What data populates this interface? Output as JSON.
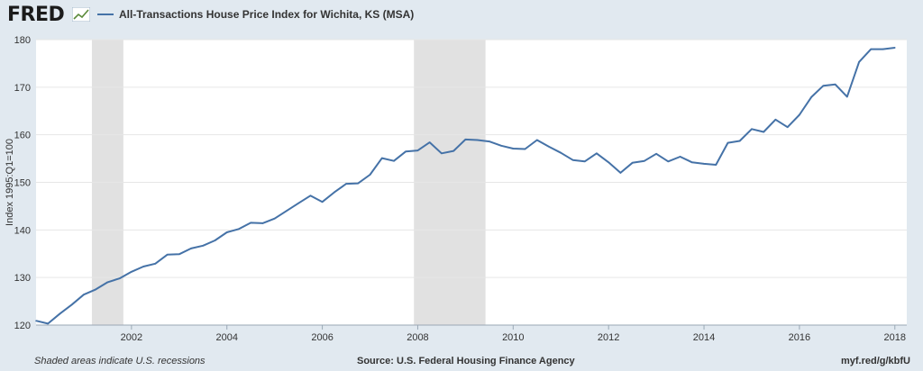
{
  "header": {
    "logo": "FRED",
    "legend_label": "All-Transactions House Price Index for Wichita, KS (MSA)"
  },
  "footer": {
    "note": "Shaded areas indicate U.S. recessions",
    "source": "Source: U.S. Federal Housing Finance Agency",
    "url": "myf.red/g/kbfU"
  },
  "colors": {
    "series": "#4572a7",
    "recession": "#e1e1e1",
    "plot_bg": "#ffffff",
    "page_bg": "#e1e9f0"
  },
  "chart_data": {
    "type": "line",
    "title": "All-Transactions House Price Index for Wichita, KS (MSA)",
    "ylabel": "Index 1995:Q1=100",
    "xlabel": "",
    "xlim": [
      2000.0,
      2018.25
    ],
    "ylim": [
      120,
      180
    ],
    "x_ticks": [
      2002,
      2004,
      2006,
      2008,
      2010,
      2012,
      2014,
      2016,
      2018
    ],
    "y_ticks": [
      120,
      130,
      140,
      150,
      160,
      170,
      180
    ],
    "grid": true,
    "recessions": [
      [
        2001.17,
        2001.83
      ],
      [
        2007.92,
        2009.42
      ]
    ],
    "series": [
      {
        "name": "All-Transactions House Price Index for Wichita, KS (MSA)",
        "x": [
          2000.0,
          2000.25,
          2000.5,
          2000.75,
          2001.0,
          2001.25,
          2001.5,
          2001.75,
          2002.0,
          2002.25,
          2002.5,
          2002.75,
          2003.0,
          2003.25,
          2003.5,
          2003.75,
          2004.0,
          2004.25,
          2004.5,
          2004.75,
          2005.0,
          2005.25,
          2005.5,
          2005.75,
          2006.0,
          2006.25,
          2006.5,
          2006.75,
          2007.0,
          2007.25,
          2007.5,
          2007.75,
          2008.0,
          2008.25,
          2008.5,
          2008.75,
          2009.0,
          2009.25,
          2009.5,
          2009.75,
          2010.0,
          2010.25,
          2010.5,
          2010.75,
          2011.0,
          2011.25,
          2011.5,
          2011.75,
          2012.0,
          2012.25,
          2012.5,
          2012.75,
          2013.0,
          2013.25,
          2013.5,
          2013.75,
          2014.0,
          2014.25,
          2014.5,
          2014.75,
          2015.0,
          2015.25,
          2015.5,
          2015.75,
          2016.0,
          2016.25,
          2016.5,
          2016.75,
          2017.0,
          2017.25,
          2017.5,
          2017.75,
          2018.0
        ],
        "y": [
          120.9,
          120.3,
          122.4,
          124.3,
          126.4,
          127.5,
          129.0,
          129.8,
          131.2,
          132.3,
          132.9,
          134.8,
          134.9,
          136.1,
          136.7,
          137.8,
          139.5,
          140.2,
          141.5,
          141.4,
          142.4,
          144.0,
          145.6,
          147.2,
          145.9,
          147.9,
          149.7,
          149.8,
          151.6,
          155.1,
          154.5,
          156.5,
          156.7,
          158.4,
          156.1,
          156.6,
          159.0,
          158.9,
          158.6,
          157.7,
          157.1,
          157.0,
          158.9,
          157.5,
          156.2,
          154.7,
          154.4,
          156.1,
          154.2,
          152.0,
          154.1,
          154.5,
          156.0,
          154.4,
          155.4,
          154.2,
          153.9,
          153.7,
          158.3,
          158.7,
          161.2,
          160.6,
          163.2,
          161.6,
          164.2,
          167.9,
          170.3,
          170.6,
          168.0,
          175.3,
          178.0,
          178.0,
          178.3
        ]
      }
    ]
  }
}
